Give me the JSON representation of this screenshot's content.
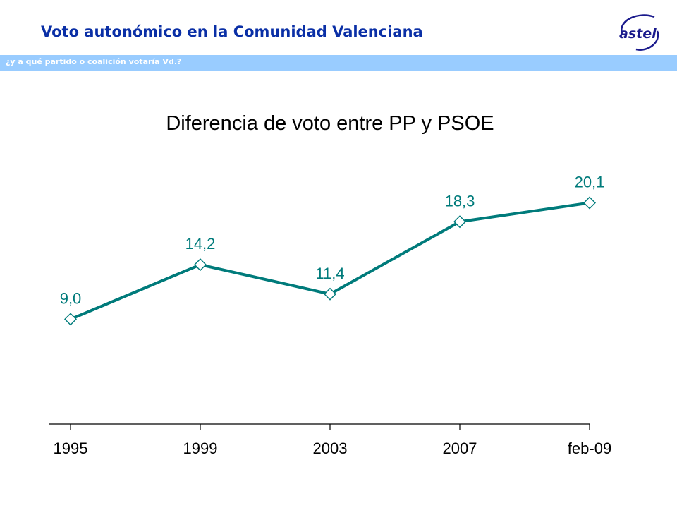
{
  "header": {
    "title": "Voto autonómico en la Comunidad Valenciana",
    "subtitle": "¿y a qué partido o coalición votaría Vd.?",
    "logo_text": "astel"
  },
  "colors": {
    "title": "#0a2fa6",
    "subtitle_bar": "#99ccff",
    "series_line": "#007b7b",
    "marker_fill": "#ffffff"
  },
  "chart_data": {
    "type": "line",
    "title": "Diferencia de voto entre PP y PSOE",
    "xlabel": "",
    "ylabel": "",
    "categories": [
      "1995",
      "1999",
      "2003",
      "2007",
      "feb-09"
    ],
    "series": [
      {
        "values": [
          9.0,
          14.2,
          11.4,
          18.3,
          20.1
        ],
        "labels": [
          "9,0",
          "14,2",
          "11,4",
          "18,3",
          "20,1"
        ]
      }
    ],
    "ylim": [
      -1.0,
      23.5
    ],
    "grid": false,
    "legend": "none",
    "marker": "diamond"
  }
}
